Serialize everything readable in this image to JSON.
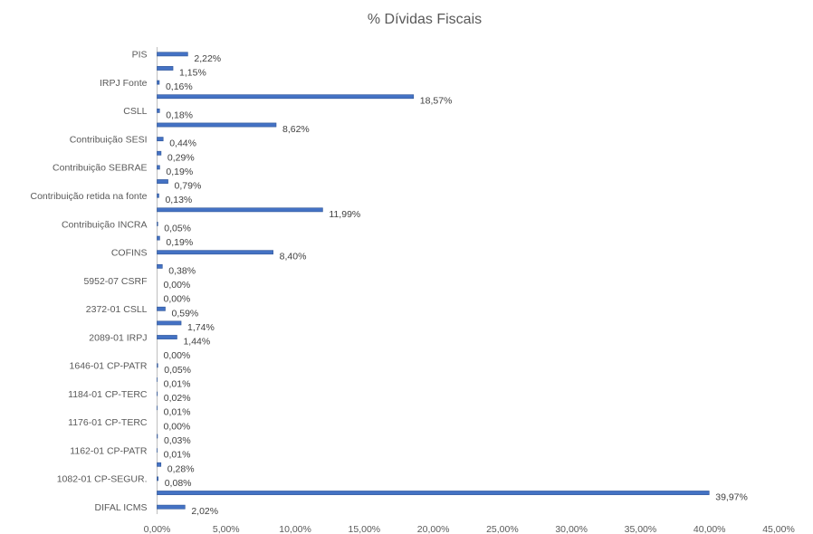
{
  "chart_data": {
    "type": "bar",
    "orientation": "horizontal",
    "title": "% Dívidas Fiscais",
    "xlabel": "",
    "ylabel": "",
    "xlim": [
      0,
      45
    ],
    "x_ticks": [
      "0,00%",
      "5,00%",
      "10,00%",
      "15,00%",
      "20,00%",
      "25,00%",
      "30,00%",
      "35,00%",
      "40,00%",
      "45,00%"
    ],
    "grid": false,
    "legend": "none",
    "bar_color": "#4472C4",
    "categories": [
      "PIS",
      "",
      "IRPJ Fonte",
      "",
      "CSLL",
      "",
      "Contribuição SESI",
      "",
      "Contribuição SEBRAE",
      "",
      "Contribuição retida na fonte",
      "",
      "Contribuição INCRA",
      "",
      "COFINS",
      "",
      "5952-07 CSRF",
      "",
      "2372-01 CSLL",
      "",
      "2089-01 IRPJ",
      "",
      "1646-01 CP-PATR",
      "",
      "1184-01 CP-TERC",
      "",
      "1176-01 CP-TERC",
      "",
      "1162-01 CP-PATR",
      "",
      "1082-01 CP-SEGUR.",
      "",
      "DIFAL ICMS"
    ],
    "values": [
      2.22,
      1.15,
      0.16,
      18.57,
      0.18,
      8.62,
      0.44,
      0.29,
      0.19,
      0.79,
      0.13,
      11.99,
      0.05,
      0.19,
      8.4,
      0.38,
      0.0,
      0.0,
      0.59,
      1.74,
      1.44,
      0.0,
      0.05,
      0.01,
      0.02,
      0.01,
      0.0,
      0.03,
      0.01,
      0.28,
      0.08,
      39.97,
      2.02
    ],
    "data_labels": [
      "2,22%",
      "1,15%",
      "0,16%",
      "18,57%",
      "0,18%",
      "8,62%",
      "0,44%",
      "0,29%",
      "0,19%",
      "0,79%",
      "0,13%",
      "11,99%",
      "0,05%",
      "0,19%",
      "8,40%",
      "0,38%",
      "0,00%",
      "0,00%",
      "0,59%",
      "1,74%",
      "1,44%",
      "0,00%",
      "0,05%",
      "0,01%",
      "0,02%",
      "0,01%",
      "0,00%",
      "0,03%",
      "0,01%",
      "0,28%",
      "0,08%",
      "39,97%",
      "2,02%"
    ]
  }
}
